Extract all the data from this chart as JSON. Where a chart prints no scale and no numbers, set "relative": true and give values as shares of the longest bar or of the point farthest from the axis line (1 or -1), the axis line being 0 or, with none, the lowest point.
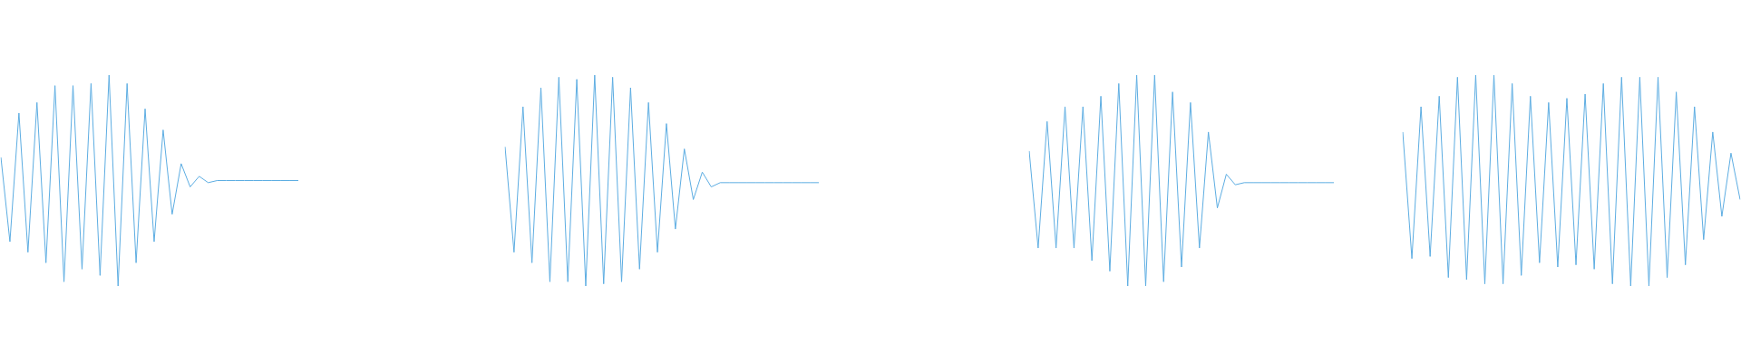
{
  "chart_data": [
    {
      "type": "line",
      "relative": true,
      "color": "#5dade2",
      "marker": "none",
      "grid": false,
      "legend": false,
      "categories": [
        null,
        null,
        null,
        null,
        null,
        null,
        null,
        null,
        null,
        null,
        null,
        null,
        null,
        null,
        null,
        null,
        null,
        null,
        null,
        null,
        null,
        null,
        null,
        null,
        null,
        null,
        null,
        null,
        null,
        null,
        null,
        null,
        null,
        null
      ],
      "values": [
        0.61,
        0.21,
        0.82,
        0.16,
        0.87,
        0.11,
        0.95,
        0.02,
        0.95,
        0.08,
        0.96,
        0.05,
        1,
        0,
        0.96,
        0.11,
        0.84,
        0.21,
        0.74,
        0.34,
        0.58,
        0.47,
        0.52,
        0.49,
        0.5,
        0.5,
        0.5,
        0.5,
        0.5,
        0.5,
        0.5,
        0.5,
        0.5,
        0.5
      ]
    },
    {
      "type": "line",
      "relative": true,
      "color": "#5dade2",
      "marker": "none",
      "grid": false,
      "legend": false,
      "categories": [
        null,
        null,
        null,
        null,
        null,
        null,
        null,
        null,
        null,
        null,
        null,
        null,
        null,
        null,
        null,
        null,
        null,
        null,
        null,
        null,
        null,
        null,
        null,
        null,
        null,
        null,
        null,
        null,
        null,
        null,
        null,
        null,
        null,
        null,
        null,
        null
      ],
      "values": [
        0.66,
        0.16,
        0.85,
        0.11,
        0.94,
        0.02,
        0.99,
        0.02,
        0.98,
        0,
        1,
        0.01,
        0.99,
        0.02,
        0.94,
        0.08,
        0.87,
        0.16,
        0.77,
        0.27,
        0.65,
        0.41,
        0.54,
        0.47,
        0.49,
        0.49,
        0.49,
        0.49,
        0.49,
        0.49,
        0.49,
        0.49,
        0.49,
        0.49,
        0.49,
        0.49
      ]
    },
    {
      "type": "line",
      "relative": true,
      "color": "#5dade2",
      "marker": "none",
      "grid": false,
      "legend": false,
      "categories": [
        null,
        null,
        null,
        null,
        null,
        null,
        null,
        null,
        null,
        null,
        null,
        null,
        null,
        null,
        null,
        null,
        null,
        null,
        null,
        null,
        null,
        null,
        null,
        null,
        null,
        null,
        null,
        null,
        null,
        null,
        null,
        null,
        null,
        null,
        null
      ],
      "values": [
        0.64,
        0.18,
        0.78,
        0.18,
        0.85,
        0.18,
        0.85,
        0.12,
        0.9,
        0.07,
        0.96,
        0,
        1,
        0,
        1,
        0.02,
        0.92,
        0.09,
        0.87,
        0.18,
        0.73,
        0.37,
        0.53,
        0.48,
        0.49,
        0.49,
        0.49,
        0.49,
        0.49,
        0.49,
        0.49,
        0.49,
        0.49,
        0.49,
        0.49
      ]
    },
    {
      "type": "line",
      "relative": true,
      "color": "#5dade2",
      "marker": "none",
      "grid": false,
      "legend": false,
      "categories": [
        null,
        null,
        null,
        null,
        null,
        null,
        null,
        null,
        null,
        null,
        null,
        null,
        null,
        null,
        null,
        null,
        null,
        null,
        null,
        null,
        null,
        null,
        null,
        null,
        null,
        null,
        null,
        null,
        null,
        null,
        null,
        null,
        null,
        null,
        null,
        null,
        null,
        null
      ],
      "values": [
        0.73,
        0.13,
        0.85,
        0.14,
        0.9,
        0.04,
        0.99,
        0.03,
        1,
        0.01,
        1,
        0.01,
        0.96,
        0.05,
        0.9,
        0.11,
        0.87,
        0.09,
        0.89,
        0.1,
        0.91,
        0.08,
        0.96,
        0.01,
        0.99,
        0,
        0.99,
        0,
        0.99,
        0.04,
        0.92,
        0.1,
        0.85,
        0.22,
        0.73,
        0.33,
        0.63,
        0.41
      ]
    }
  ]
}
